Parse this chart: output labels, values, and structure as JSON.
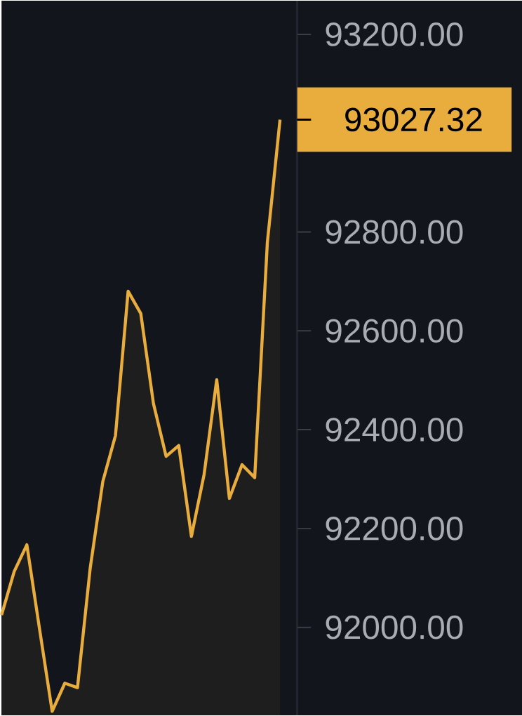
{
  "chart_data": {
    "type": "area",
    "categories": [
      null,
      null,
      null,
      null,
      null,
      null,
      null,
      null,
      null,
      null,
      null,
      null,
      null,
      null,
      null,
      null,
      null,
      null,
      null,
      null,
      null,
      null,
      null
    ],
    "series": [
      {
        "color": "#e8ad3c",
        "values": [
          92025,
          92113,
          92167,
          91997,
          91830,
          91887,
          91878,
          92119,
          92295,
          92388,
          92680,
          92635,
          92453,
          92346,
          92368,
          92184,
          92309,
          92501,
          92261,
          92329,
          92303,
          92779,
          93027.32
        ]
      }
    ],
    "ylim": [
      91822,
      93268
    ],
    "yticks": [
      {
        "value": 92000,
        "label": "92000.00"
      },
      {
        "value": 92200,
        "label": "92200.00"
      },
      {
        "value": 92400,
        "label": "92400.00"
      },
      {
        "value": 92600,
        "label": "92600.00"
      },
      {
        "value": 92800,
        "label": "92800.00"
      },
      {
        "value": 93200,
        "label": "93200.00"
      }
    ],
    "tick_labels": "y",
    "annotations": [
      "93027.32"
    ]
  }
}
